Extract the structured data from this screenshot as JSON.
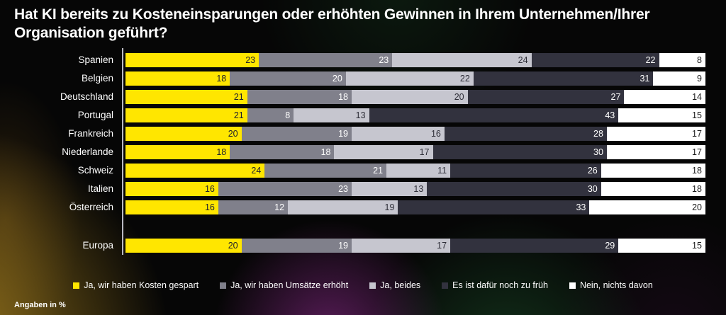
{
  "title": "Hat KI bereits zu Kosteneinsparungen oder erhöhten Gewinnen in Ihrem Unternehmen/Ihrer Organisation geführt?",
  "footnote": "Angaben in %",
  "colors": {
    "background": "#060606",
    "title_text": "#ffffff",
    "axis_line": "#b9b9c2",
    "accent_yellow": "#ffe600"
  },
  "chart_data": {
    "type": "bar",
    "orientation": "horizontal",
    "stacked": true,
    "unit": "%",
    "xlim": [
      0,
      100
    ],
    "grid": false,
    "legend_position": "bottom",
    "series": [
      {
        "name": "Ja, wir haben Kosten gespart",
        "color": "#ffe600",
        "text_color": "#20202c"
      },
      {
        "name": "Ja, wir haben Umsätze erhöht",
        "color": "#80808b",
        "text_color": "#ffffff"
      },
      {
        "name": "Ja, beides",
        "color": "#c6c6cf",
        "text_color": "#2e2e38"
      },
      {
        "name": "Es ist dafür noch zu früh",
        "color": "#32323e",
        "text_color": "#ffffff"
      },
      {
        "name": "Nein, nichts davon",
        "color": "#ffffff",
        "text_color": "#1a1a1a"
      }
    ],
    "categories": [
      "Spanien",
      "Belgien",
      "Deutschland",
      "Portugal",
      "Frankreich",
      "Niederlande",
      "Schweiz",
      "Italien",
      "Österreich",
      "Europa"
    ],
    "rows": [
      {
        "label": "Spanien",
        "values": [
          23,
          23,
          24,
          22,
          8
        ]
      },
      {
        "label": "Belgien",
        "values": [
          18,
          20,
          22,
          31,
          9
        ]
      },
      {
        "label": "Deutschland",
        "values": [
          21,
          18,
          20,
          27,
          14
        ]
      },
      {
        "label": "Portugal",
        "values": [
          21,
          8,
          13,
          43,
          15
        ]
      },
      {
        "label": "Frankreich",
        "values": [
          20,
          19,
          16,
          28,
          17
        ]
      },
      {
        "label": "Niederlande",
        "values": [
          18,
          18,
          17,
          30,
          17
        ]
      },
      {
        "label": "Schweiz",
        "values": [
          24,
          21,
          11,
          26,
          18
        ]
      },
      {
        "label": "Italien",
        "values": [
          16,
          23,
          13,
          30,
          18
        ]
      },
      {
        "label": "Österreich",
        "values": [
          16,
          12,
          19,
          33,
          20
        ]
      },
      {
        "label": "Europa",
        "values": [
          20,
          19,
          17,
          29,
          15
        ],
        "gap_before": true
      }
    ]
  }
}
